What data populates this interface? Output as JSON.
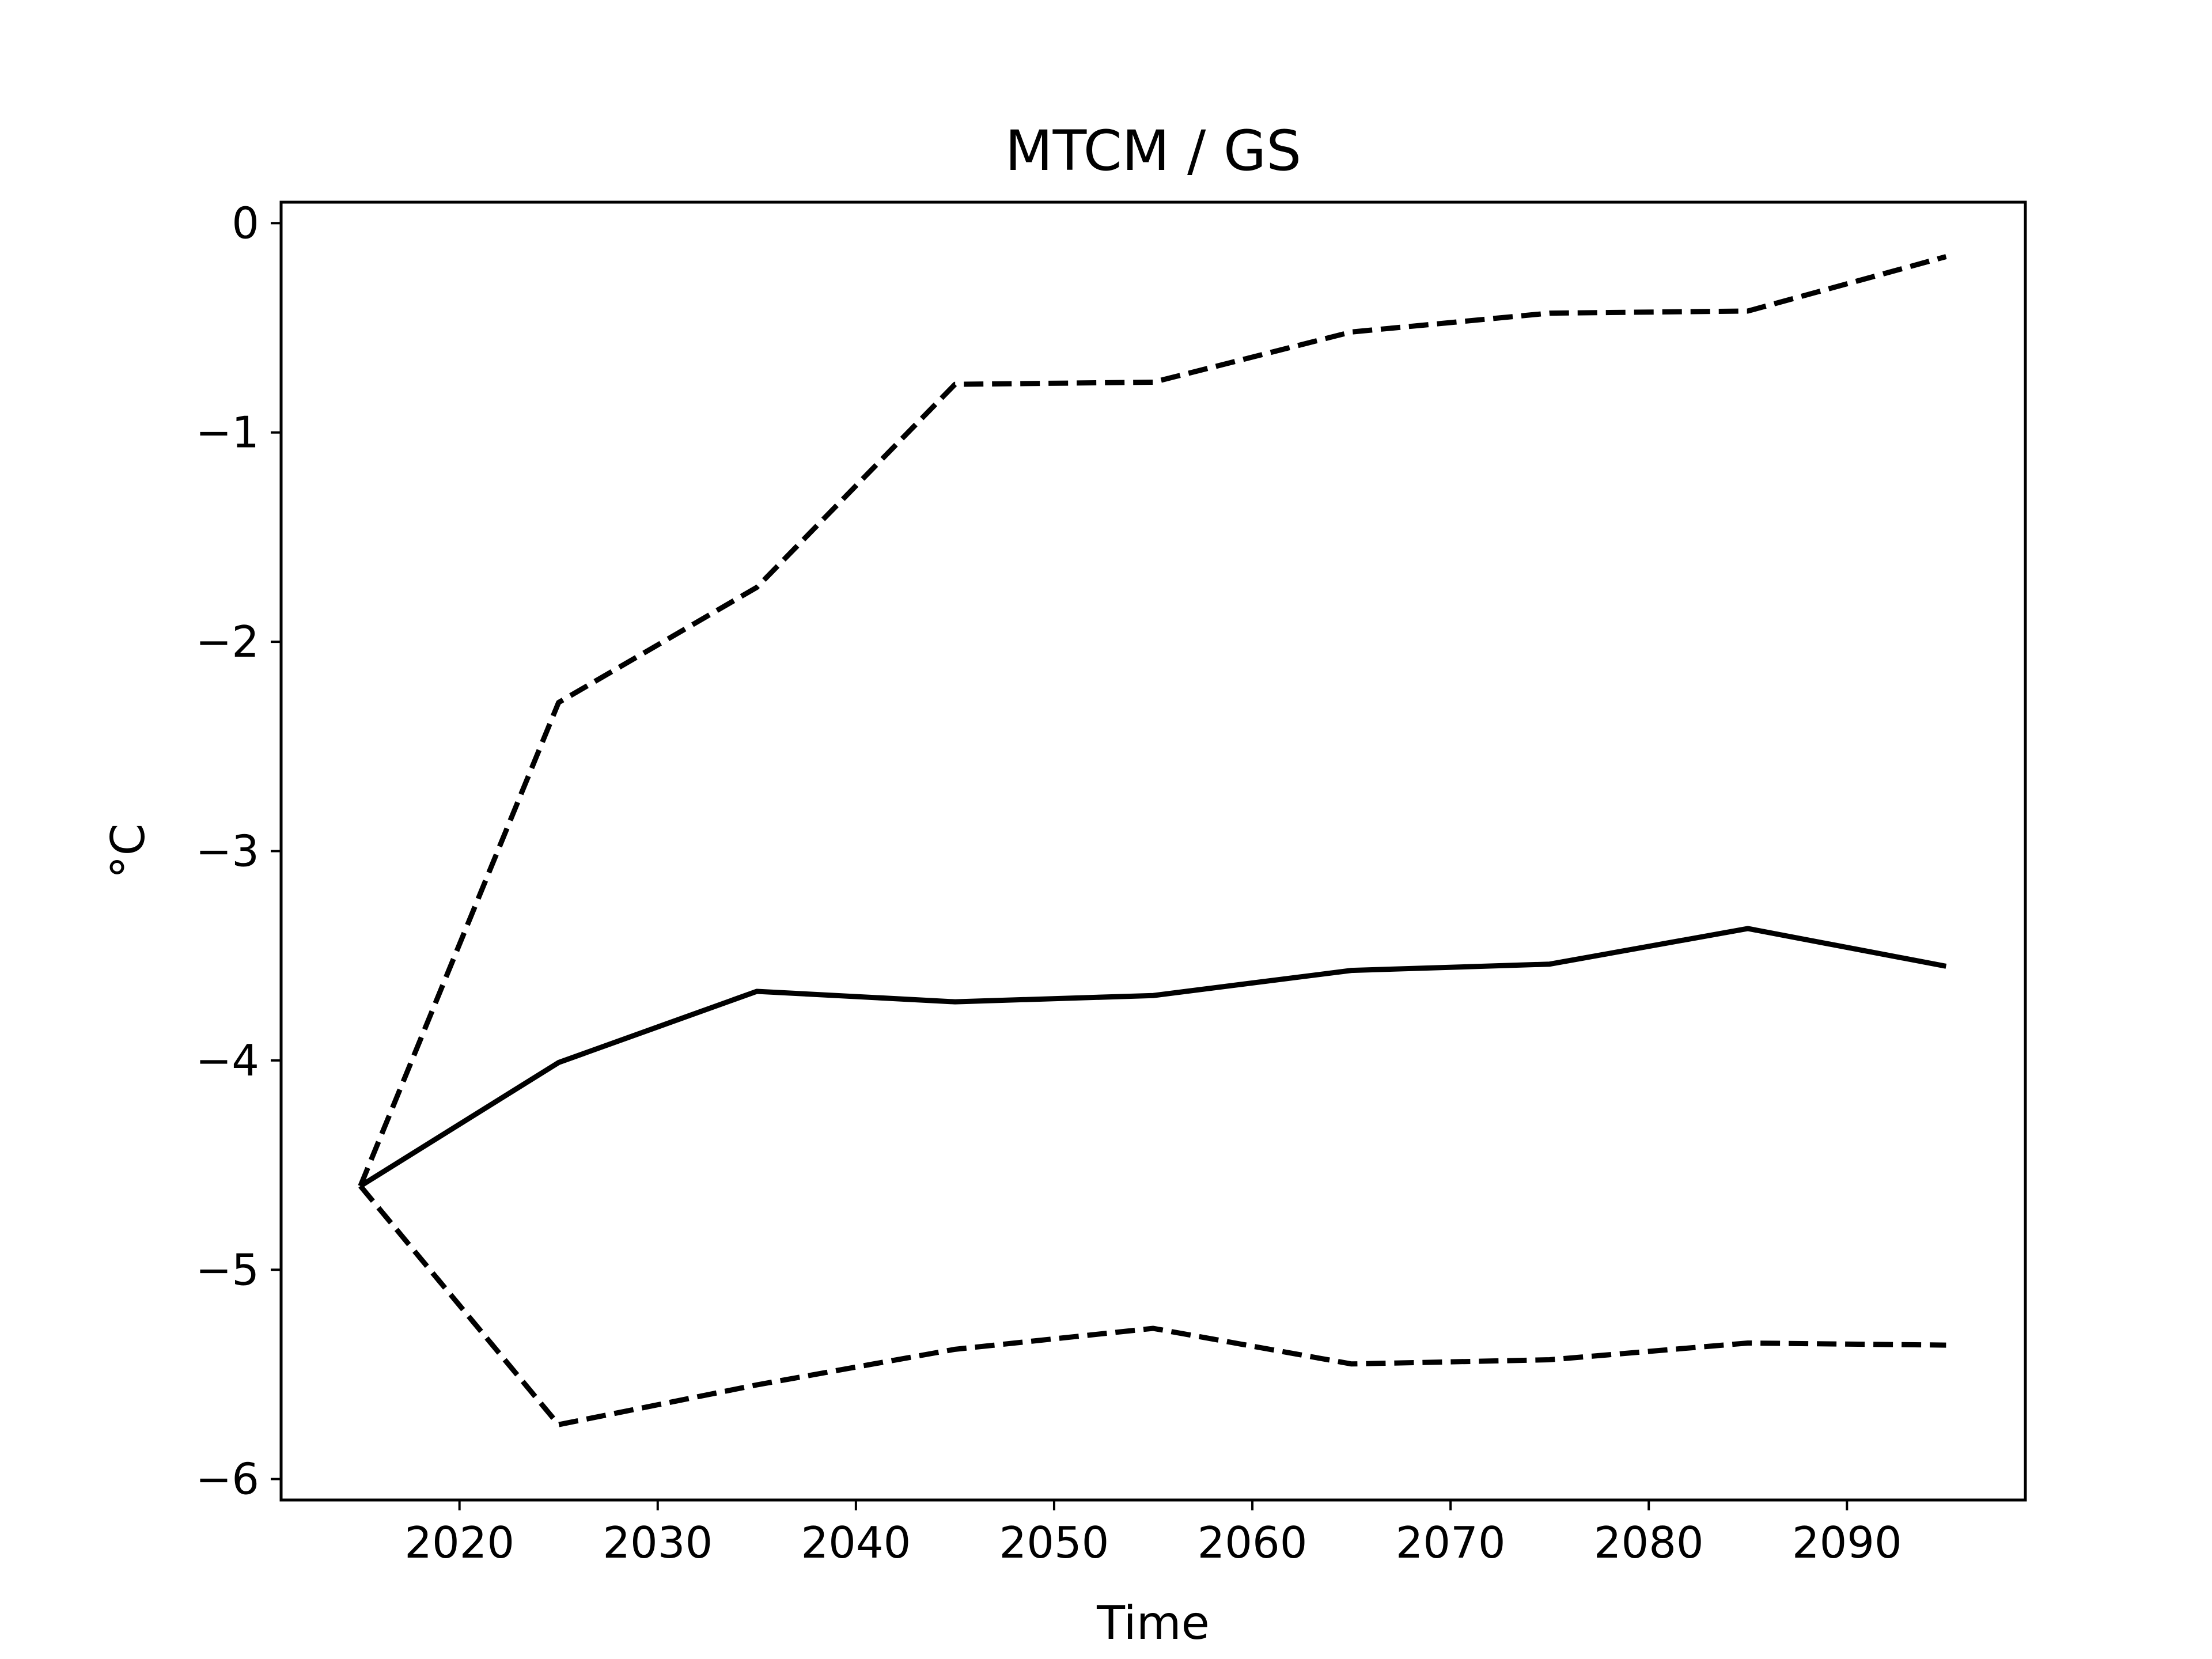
{
  "chart_data": {
    "type": "line",
    "title": "MTCM / GS",
    "xlabel": "Time",
    "ylabel": "°C",
    "xlim": [
      2011,
      2099
    ],
    "ylim": [
      -6.1,
      0.1
    ],
    "xticks": [
      2020,
      2030,
      2040,
      2050,
      2060,
      2070,
      2080,
      2090
    ],
    "xtick_labels": [
      "2020",
      "2030",
      "2040",
      "2050",
      "2060",
      "2070",
      "2080",
      "2090"
    ],
    "yticks": [
      0,
      -1,
      -2,
      -3,
      -4,
      -5,
      -6
    ],
    "ytick_labels": [
      "0",
      "−1",
      "−2",
      "−3",
      "−4",
      "−5",
      "−6"
    ],
    "grid": false,
    "legend": "none",
    "x": [
      2015,
      2025,
      2035,
      2045,
      2055,
      2065,
      2075,
      2085,
      2095
    ],
    "series": [
      {
        "style": "solid",
        "color": "#000000",
        "values": [
          -4.6,
          -4.01,
          -3.67,
          -3.72,
          -3.69,
          -3.57,
          -3.54,
          -3.37,
          -3.55
        ]
      },
      {
        "style": "dashed",
        "color": "#000000",
        "values": [
          -4.6,
          -2.29,
          -1.74,
          -0.77,
          -0.76,
          -0.52,
          -0.43,
          -0.42,
          -0.16
        ]
      },
      {
        "style": "dashed",
        "color": "#000000",
        "values": [
          -4.6,
          -5.74,
          -5.55,
          -5.38,
          -5.28,
          -5.45,
          -5.43,
          -5.35,
          -5.36
        ]
      }
    ]
  }
}
